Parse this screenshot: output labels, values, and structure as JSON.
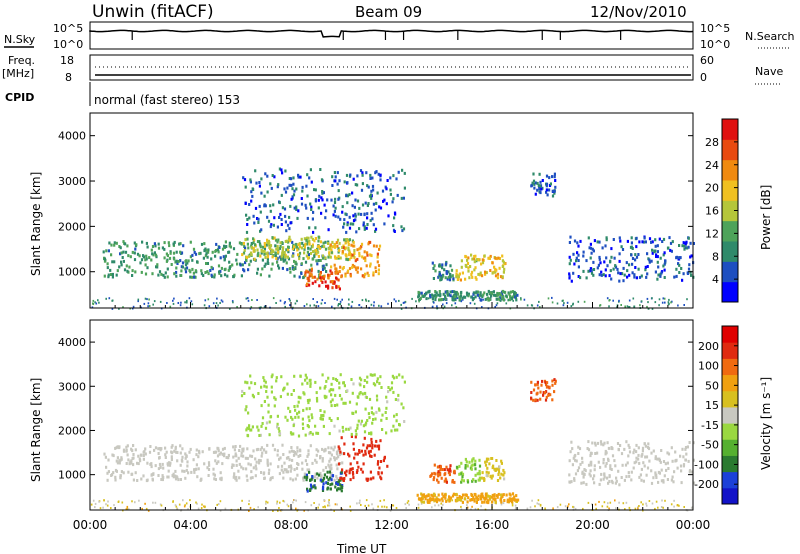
{
  "header": {
    "station": "Unwin (fitACF)",
    "beam": "Beam 09",
    "date": "12/Nov/2010"
  },
  "top_panels": {
    "nsky_label": "N.Sky",
    "nsky_ticks": [
      "10^5",
      "10^0"
    ],
    "nsearch_label": "N.Search",
    "nsearch_ticks": [
      "10^5",
      "10^0"
    ],
    "freq_label": "Freq.",
    "freq_unit": "[MHz]",
    "freq_ticks": [
      "18",
      "8"
    ],
    "nave_label": "Nave",
    "nave_ticks": [
      "60",
      "0"
    ],
    "cpid_label": "CPID",
    "cpid_text": "normal (fast stereo) 153"
  },
  "colors": {
    "power_scale": [
      "#0000ff",
      "#1e4fc0",
      "#2f8a6a",
      "#4ea35a",
      "#b5c63a",
      "#f0c020",
      "#f08a10",
      "#e84a10",
      "#e01010"
    ],
    "velocity_scale": [
      "#1212c8",
      "#1c40d8",
      "#2a7a30",
      "#55b030",
      "#9ad840",
      "#c8c8c0",
      "#d8c020",
      "#f0a010",
      "#f06a10",
      "#e02a10",
      "#e00000"
    ]
  },
  "chart_data": [
    {
      "type": "heatmap",
      "panel": "power",
      "ylabel": "Slant Range [km]",
      "yticks": [
        "4000",
        "3000",
        "2000",
        "1000"
      ],
      "ylim": [
        200,
        4500
      ],
      "xlim": [
        "00:00",
        "24:00"
      ],
      "colorbar_label": "Power [dB]",
      "colorbar_ticks": [
        "28",
        "24",
        "20",
        "16",
        "12",
        "8",
        "4"
      ],
      "colorbar_range": [
        0,
        32
      ],
      "features": [
        {
          "t": [
            0.5,
            9.5
          ],
          "range": [
            900,
            1700
          ],
          "value": 10
        },
        {
          "t": [
            6.0,
            10.5
          ],
          "range": [
            1300,
            1800
          ],
          "value": 16
        },
        {
          "t": [
            8.5,
            10.0
          ],
          "range": [
            650,
            1100
          ],
          "value": 26
        },
        {
          "t": [
            9.5,
            11.5
          ],
          "range": [
            900,
            1700
          ],
          "value": 22
        },
        {
          "t": [
            6.0,
            12.5
          ],
          "range": [
            1900,
            3300
          ],
          "value": 6
        },
        {
          "t": [
            13.5,
            14.5
          ],
          "range": [
            850,
            1250
          ],
          "value": 8
        },
        {
          "t": [
            14.5,
            15.5
          ],
          "range": [
            850,
            1400
          ],
          "value": 18
        },
        {
          "t": [
            15.5,
            16.5
          ],
          "range": [
            900,
            1400
          ],
          "value": 20
        },
        {
          "t": [
            13.0,
            17.0
          ],
          "range": [
            400,
            600
          ],
          "value": 10
        },
        {
          "t": [
            17.5,
            18.5
          ],
          "range": [
            2700,
            3200
          ],
          "value": 6
        },
        {
          "t": [
            19.0,
            24.0
          ],
          "range": [
            800,
            1800
          ],
          "value": 6
        }
      ]
    },
    {
      "type": "heatmap",
      "panel": "velocity",
      "ylabel": "Slant Range [km]",
      "yticks": [
        "4000",
        "3000",
        "2000",
        "1000"
      ],
      "ylim": [
        200,
        4500
      ],
      "xlim": [
        "00:00",
        "24:00"
      ],
      "xticks": [
        "00:00",
        "04:00",
        "08:00",
        "12:00",
        "16:00",
        "20:00",
        "00:00"
      ],
      "xlabel": "Time UT",
      "colorbar_label": "Velocity [m s⁻¹]",
      "colorbar_ticks": [
        "200",
        "100",
        "50",
        "15",
        "-15",
        "-50",
        "-100",
        "-200"
      ],
      "colorbar_range": [
        -250,
        250
      ],
      "features": [
        {
          "t": [
            0.5,
            10.0
          ],
          "range": [
            900,
            1700
          ],
          "value": 0
        },
        {
          "t": [
            8.5,
            10.0
          ],
          "range": [
            650,
            1100
          ],
          "value": -150
        },
        {
          "t": [
            9.8,
            11.8
          ],
          "range": [
            900,
            1900
          ],
          "value": 180
        },
        {
          "t": [
            6.0,
            12.5
          ],
          "range": [
            1900,
            3300
          ],
          "value": -40
        },
        {
          "t": [
            13.5,
            14.5
          ],
          "range": [
            850,
            1250
          ],
          "value": 150
        },
        {
          "t": [
            14.5,
            15.5
          ],
          "range": [
            850,
            1400
          ],
          "value": -60
        },
        {
          "t": [
            15.5,
            16.5
          ],
          "range": [
            900,
            1400
          ],
          "value": 40
        },
        {
          "t": [
            13.0,
            17.0
          ],
          "range": [
            400,
            600
          ],
          "value": 80
        },
        {
          "t": [
            17.5,
            18.5
          ],
          "range": [
            2700,
            3200
          ],
          "value": 150
        },
        {
          "t": [
            19.0,
            24.0
          ],
          "range": [
            800,
            1800
          ],
          "value": 0
        }
      ]
    }
  ]
}
